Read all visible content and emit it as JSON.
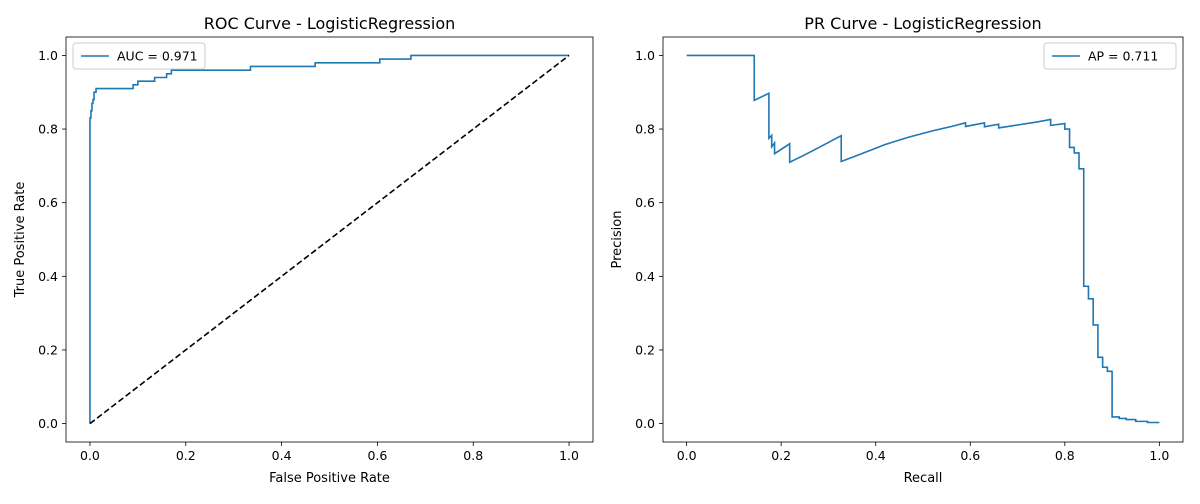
{
  "chart_data": [
    {
      "type": "line",
      "title": "ROC Curve - LogisticRegression",
      "xlabel": "False Positive Rate",
      "ylabel": "True Positive Rate",
      "xlim": [
        -0.05,
        1.05
      ],
      "ylim": [
        -0.05,
        1.05
      ],
      "xticks": [
        "0.0",
        "0.2",
        "0.4",
        "0.6",
        "0.8",
        "1.0"
      ],
      "yticks": [
        "0.0",
        "0.2",
        "0.4",
        "0.6",
        "0.8",
        "1.0"
      ],
      "legend_position": "upper-left",
      "grid": false,
      "series": [
        {
          "name": "AUC = 0.971",
          "color": "#1f77b4",
          "style": "solid",
          "step": true,
          "points": [
            [
              0.0,
              0.0
            ],
            [
              0.0,
              0.83
            ],
            [
              0.0021,
              0.83
            ],
            [
              0.0021,
              0.85
            ],
            [
              0.0042,
              0.85
            ],
            [
              0.0042,
              0.87
            ],
            [
              0.0063,
              0.87
            ],
            [
              0.0063,
              0.88
            ],
            [
              0.0085,
              0.88
            ],
            [
              0.0085,
              0.9
            ],
            [
              0.0127,
              0.9
            ],
            [
              0.0127,
              0.91
            ],
            [
              0.09,
              0.91
            ],
            [
              0.09,
              0.92
            ],
            [
              0.1,
              0.92
            ],
            [
              0.1,
              0.93
            ],
            [
              0.135,
              0.93
            ],
            [
              0.135,
              0.94
            ],
            [
              0.16,
              0.94
            ],
            [
              0.16,
              0.95
            ],
            [
              0.17,
              0.95
            ],
            [
              0.17,
              0.96
            ],
            [
              0.335,
              0.96
            ],
            [
              0.335,
              0.97
            ],
            [
              0.47,
              0.97
            ],
            [
              0.47,
              0.98
            ],
            [
              0.605,
              0.98
            ],
            [
              0.605,
              0.99
            ],
            [
              0.67,
              0.99
            ],
            [
              0.67,
              1.0
            ],
            [
              1.0,
              1.0
            ]
          ]
        },
        {
          "name": "",
          "color": "#000000",
          "style": "dashed",
          "step": false,
          "points": [
            [
              0.0,
              0.0
            ],
            [
              1.0,
              1.0
            ]
          ]
        }
      ]
    },
    {
      "type": "line",
      "title": "PR Curve - LogisticRegression",
      "xlabel": "Recall",
      "ylabel": "Precision",
      "xlim": [
        -0.05,
        1.05
      ],
      "ylim": [
        -0.05,
        1.05
      ],
      "xticks": [
        "0.0",
        "0.2",
        "0.4",
        "0.6",
        "0.8",
        "1.0"
      ],
      "yticks": [
        "0.0",
        "0.2",
        "0.4",
        "0.6",
        "0.8",
        "1.0"
      ],
      "legend_position": "upper-right",
      "grid": false,
      "series": [
        {
          "name": "AP = 0.711",
          "color": "#1f77b4",
          "style": "solid",
          "step": false,
          "points": [
            [
              0.0,
              1.0
            ],
            [
              0.143,
              1.0
            ],
            [
              0.143,
              0.878
            ],
            [
              0.174,
              0.897
            ],
            [
              0.174,
              0.775
            ],
            [
              0.18,
              0.783
            ],
            [
              0.18,
              0.752
            ],
            [
              0.186,
              0.762
            ],
            [
              0.186,
              0.733
            ],
            [
              0.218,
              0.76
            ],
            [
              0.218,
              0.71
            ],
            [
              0.25,
              0.73
            ],
            [
              0.28,
              0.75
            ],
            [
              0.327,
              0.782
            ],
            [
              0.327,
              0.712
            ],
            [
              0.37,
              0.733
            ],
            [
              0.42,
              0.758
            ],
            [
              0.47,
              0.778
            ],
            [
              0.52,
              0.795
            ],
            [
              0.56,
              0.807
            ],
            [
              0.59,
              0.817
            ],
            [
              0.59,
              0.807
            ],
            [
              0.63,
              0.817
            ],
            [
              0.63,
              0.806
            ],
            [
              0.66,
              0.813
            ],
            [
              0.66,
              0.803
            ],
            [
              0.7,
              0.811
            ],
            [
              0.74,
              0.819
            ],
            [
              0.77,
              0.826
            ],
            [
              0.77,
              0.81
            ],
            [
              0.8,
              0.815
            ],
            [
              0.8,
              0.8
            ],
            [
              0.81,
              0.8
            ],
            [
              0.81,
              0.75
            ],
            [
              0.82,
              0.75
            ],
            [
              0.82,
              0.735
            ],
            [
              0.83,
              0.735
            ],
            [
              0.83,
              0.692
            ],
            [
              0.84,
              0.692
            ],
            [
              0.84,
              0.373
            ],
            [
              0.85,
              0.373
            ],
            [
              0.85,
              0.339
            ],
            [
              0.86,
              0.339
            ],
            [
              0.86,
              0.268
            ],
            [
              0.87,
              0.268
            ],
            [
              0.87,
              0.18
            ],
            [
              0.88,
              0.18
            ],
            [
              0.88,
              0.153
            ],
            [
              0.89,
              0.153
            ],
            [
              0.89,
              0.142
            ],
            [
              0.9,
              0.142
            ],
            [
              0.9,
              0.018
            ],
            [
              0.915,
              0.018
            ],
            [
              0.915,
              0.014
            ],
            [
              0.93,
              0.014
            ],
            [
              0.93,
              0.011
            ],
            [
              0.95,
              0.011
            ],
            [
              0.95,
              0.006
            ],
            [
              0.975,
              0.006
            ],
            [
              0.975,
              0.003
            ],
            [
              1.0,
              0.003
            ]
          ]
        }
      ]
    }
  ]
}
